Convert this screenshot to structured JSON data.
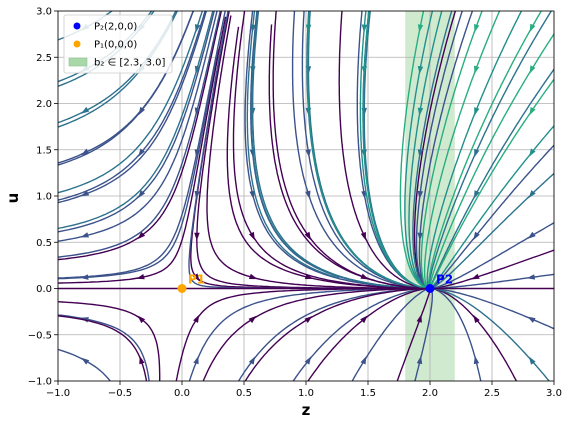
{
  "chart_data": {
    "type": "streamplot",
    "xlabel": "z",
    "ylabel": "u",
    "xlim": [
      -1.0,
      3.0
    ],
    "ylim": [
      -1.0,
      3.0
    ],
    "xticks": [
      "−1.0",
      "−0.5",
      "0.0",
      "0.5",
      "1.0",
      "1.5",
      "2.0",
      "2.5",
      "3.0"
    ],
    "xtick_values": [
      -1.0,
      -0.5,
      0.0,
      0.5,
      1.0,
      1.5,
      2.0,
      2.5,
      3.0
    ],
    "yticks": [
      "−1.0",
      "−0.5",
      "0.0",
      "0.5",
      "1.0",
      "1.5",
      "2.0",
      "2.5",
      "3.0"
    ],
    "ytick_values": [
      -1.0,
      -0.5,
      0.0,
      0.5,
      1.0,
      1.5,
      2.0,
      2.5,
      3.0
    ],
    "grid": true,
    "legend_position": "top-left",
    "legend": [
      {
        "label": "P₂(2,0,0)",
        "kind": "marker",
        "color": "#0000ff"
      },
      {
        "label": "P₁(0,0,0)",
        "kind": "marker",
        "color": "#ffa500"
      },
      {
        "label": "b₂ ∈ [2.3, 3.0]",
        "kind": "patch",
        "color": "#a9d8a9"
      }
    ],
    "points": [
      {
        "name": "P1",
        "label": "P1",
        "x": 0.0,
        "y": 0.0,
        "color": "#ffa500"
      },
      {
        "name": "P2",
        "label": "P2",
        "x": 2.0,
        "y": 0.0,
        "color": "#0000ff"
      }
    ],
    "shaded_band": {
      "x_range": [
        1.8,
        2.2
      ],
      "color": "#a9d8a9",
      "opacity": 0.55
    },
    "colormap": [
      "#440154",
      "#3b528b",
      "#2c728e",
      "#21918c",
      "#28ae80"
    ]
  }
}
